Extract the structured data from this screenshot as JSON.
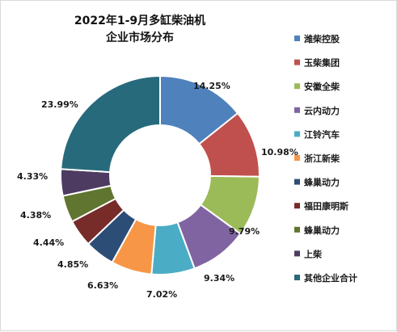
{
  "chart_data": {
    "type": "pie",
    "variant": "donut",
    "title_lines": [
      "2022年1-9月多缸柴油机",
      "企业市场分布"
    ],
    "categories": [
      "潍柴控股",
      "玉柴集团",
      "安徽全柴",
      "云内动力",
      "江铃汽车",
      "浙江新柴",
      "蜂巢动力",
      "福田康明斯",
      "蜂巢动力",
      "上柴",
      "其他企业合计"
    ],
    "values": [
      14.25,
      10.98,
      9.79,
      9.34,
      7.02,
      6.63,
      4.85,
      4.44,
      4.38,
      4.33,
      23.99
    ],
    "labels": [
      "14.25%",
      "10.98%",
      "9.79%",
      "9.34%",
      "7.02%",
      "6.63%",
      "4.85%",
      "4.44%",
      "4.38%",
      "4.33%",
      "23.99%"
    ],
    "colors": [
      "#4f81bd",
      "#c0504d",
      "#9bbb59",
      "#8064a2",
      "#4bacc6",
      "#f79646",
      "#2c4d75",
      "#772c2a",
      "#5f7530",
      "#4d3b62",
      "#276a7c"
    ],
    "legend_position": "right",
    "unit": "%"
  }
}
